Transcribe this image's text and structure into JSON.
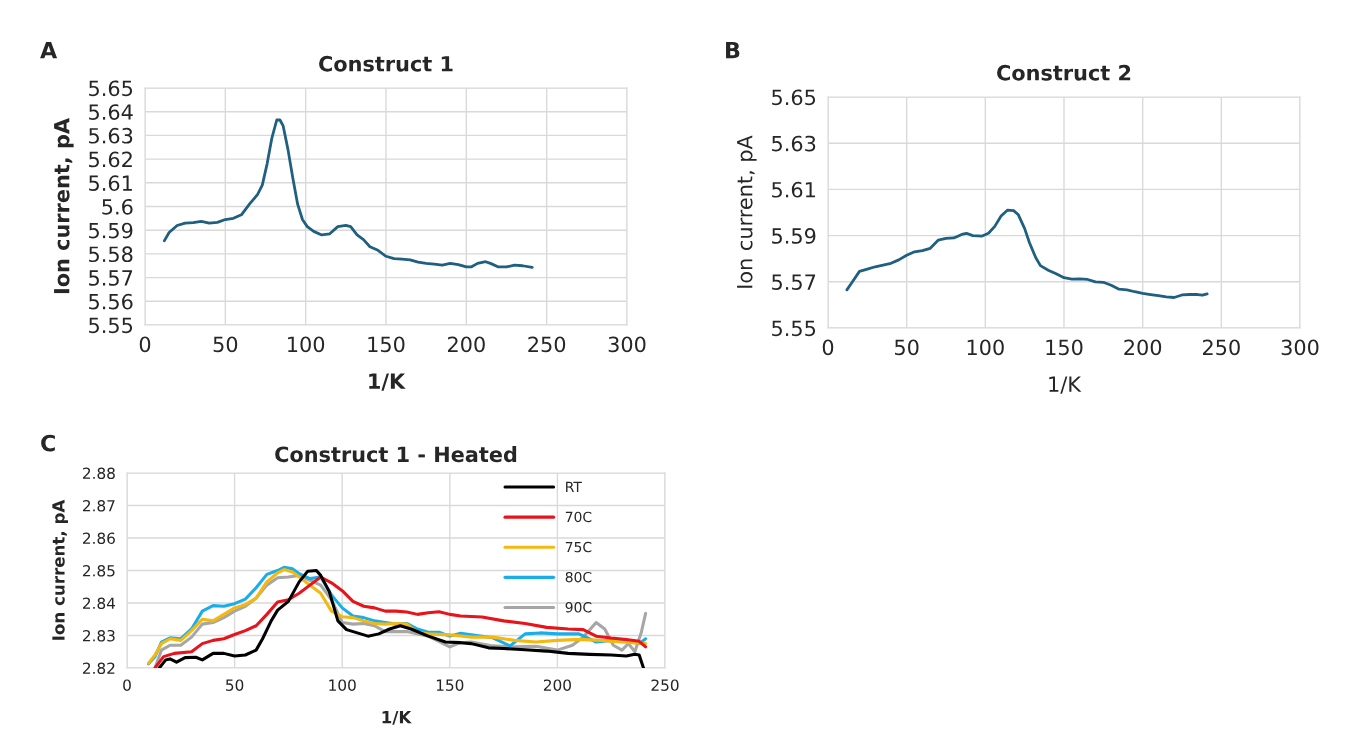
{
  "chart_data": [
    {
      "type": "line",
      "title": "Construct 1",
      "xlabel": "1/K",
      "ylabel": "Ion current, pA",
      "annotations": [
        "A"
      ],
      "xlim": [
        0,
        300
      ],
      "xticks": [
        0,
        50,
        100,
        150,
        200,
        250,
        300
      ],
      "ylim": [
        5.55,
        5.65
      ],
      "yticks": [
        {
          "value": 5.55,
          "label": "5.55"
        },
        {
          "value": 5.56,
          "label": "5.56"
        },
        {
          "value": 5.57,
          "label": "5.57"
        },
        {
          "value": 5.58,
          "label": "5.58"
        },
        {
          "value": 5.59,
          "label": "5.59"
        },
        {
          "value": 5.6,
          "label": "5.6"
        },
        {
          "value": 5.61,
          "label": "5.61"
        },
        {
          "value": 5.62,
          "label": "5.62"
        },
        {
          "value": 5.63,
          "label": "5.63"
        },
        {
          "value": 5.64,
          "label": "5.64"
        },
        {
          "value": 5.65,
          "label": "5.65"
        }
      ],
      "grid": true,
      "legend": false,
      "series": [
        {
          "color": "#1f5f7f",
          "x": [
            12,
            15,
            20,
            25,
            30,
            35,
            40,
            45,
            50,
            55,
            60,
            65,
            70,
            73,
            76,
            79,
            82,
            84,
            86,
            89,
            92,
            95,
            98,
            101,
            105,
            110,
            115,
            120,
            125,
            128,
            132,
            136,
            140,
            145,
            150,
            155,
            160,
            165,
            170,
            175,
            180,
            185,
            190,
            195,
            200,
            203,
            207,
            212,
            215,
            220,
            225,
            230,
            235,
            241
          ],
          "values": [
            5.5855,
            5.589,
            5.592,
            5.593,
            5.5932,
            5.5937,
            5.593,
            5.5933,
            5.5945,
            5.595,
            5.5965,
            5.601,
            5.605,
            5.609,
            5.618,
            5.629,
            5.6365,
            5.6365,
            5.634,
            5.624,
            5.612,
            5.601,
            5.5945,
            5.5915,
            5.5895,
            5.588,
            5.5885,
            5.5915,
            5.592,
            5.5915,
            5.588,
            5.586,
            5.583,
            5.5815,
            5.579,
            5.578,
            5.5778,
            5.5775,
            5.5765,
            5.576,
            5.5757,
            5.5753,
            5.576,
            5.5755,
            5.5745,
            5.5745,
            5.576,
            5.5767,
            5.576,
            5.5745,
            5.5745,
            5.5753,
            5.575,
            5.5743
          ]
        }
      ]
    },
    {
      "type": "line",
      "title": "Construct 2",
      "xlabel": "1/K",
      "ylabel": "Ion current, pA",
      "annotations": [
        "B"
      ],
      "xlim": [
        0,
        300
      ],
      "xticks": [
        0,
        50,
        100,
        150,
        200,
        250,
        300
      ],
      "ylim": [
        5.55,
        5.65
      ],
      "yticks": [
        {
          "value": 5.55,
          "label": "5.55"
        },
        {
          "value": 5.57,
          "label": "5.57"
        },
        {
          "value": 5.59,
          "label": "5.59"
        },
        {
          "value": 5.61,
          "label": "5.61"
        },
        {
          "value": 5.63,
          "label": "5.63"
        },
        {
          "value": 5.65,
          "label": "5.65"
        }
      ],
      "grid": true,
      "legend": false,
      "series": [
        {
          "color": "#1f5f7f",
          "x": [
            12,
            15,
            20,
            25,
            30,
            40,
            45,
            50,
            55,
            60,
            65,
            70,
            75,
            80,
            85,
            88,
            92,
            98,
            102,
            106,
            110,
            114,
            118,
            121,
            125,
            128,
            132,
            135,
            140,
            145,
            150,
            155,
            160,
            165,
            170,
            175,
            180,
            185,
            190,
            195,
            200,
            205,
            210,
            215,
            220,
            225,
            230,
            235,
            238,
            241
          ],
          "values": [
            5.5665,
            5.5695,
            5.5745,
            5.5755,
            5.5765,
            5.578,
            5.5795,
            5.5815,
            5.583,
            5.5835,
            5.5845,
            5.588,
            5.5888,
            5.589,
            5.5905,
            5.591,
            5.59,
            5.5898,
            5.591,
            5.594,
            5.5985,
            5.601,
            5.6008,
            5.599,
            5.593,
            5.587,
            5.5805,
            5.577,
            5.575,
            5.5735,
            5.5718,
            5.5712,
            5.5713,
            5.571,
            5.57,
            5.5698,
            5.5685,
            5.5668,
            5.5665,
            5.5657,
            5.565,
            5.5645,
            5.564,
            5.5635,
            5.5632,
            5.5643,
            5.5645,
            5.5645,
            5.5642,
            5.5648
          ]
        }
      ]
    },
    {
      "type": "line",
      "title": "Construct 1 - Heated",
      "xlabel": "1/K",
      "ylabel": "Ion current, pA",
      "annotations": [
        "C"
      ],
      "xlim": [
        0,
        250
      ],
      "xticks": [
        0,
        50,
        100,
        150,
        200,
        250
      ],
      "ylim": [
        2.82,
        2.88
      ],
      "yticks": [
        {
          "value": 2.82,
          "label": "2.82"
        },
        {
          "value": 2.83,
          "label": "2.83"
        },
        {
          "value": 2.84,
          "label": "2.84"
        },
        {
          "value": 2.85,
          "label": "2.85"
        },
        {
          "value": 2.86,
          "label": "2.86"
        },
        {
          "value": 2.87,
          "label": "2.87"
        },
        {
          "value": 2.88,
          "label": "2.88"
        }
      ],
      "grid": true,
      "legend": "top right",
      "series": [
        {
          "name": "RT",
          "color": "#000000",
          "x": [
            15,
            18,
            20,
            23,
            27,
            32,
            35,
            40,
            45,
            50,
            55,
            60,
            63,
            67,
            70,
            75,
            80,
            84,
            88,
            90,
            94,
            98,
            102,
            107,
            112,
            117,
            122,
            127,
            132,
            140,
            148,
            155,
            160,
            168,
            175,
            185,
            195,
            205,
            215,
            225,
            232,
            236,
            238,
            240
          ],
          "values": [
            2.82,
            2.8225,
            2.8228,
            2.8218,
            2.8232,
            2.8233,
            2.8225,
            2.8245,
            2.8245,
            2.8237,
            2.824,
            2.8255,
            2.829,
            2.8345,
            2.8378,
            2.8405,
            2.8465,
            2.8498,
            2.85,
            2.8485,
            2.8435,
            2.8345,
            2.8318,
            2.8308,
            2.8298,
            2.8305,
            2.832,
            2.833,
            2.832,
            2.8298,
            2.828,
            2.8278,
            2.8275,
            2.8262,
            2.826,
            2.8256,
            2.8252,
            2.8245,
            2.8242,
            2.824,
            2.8237,
            2.8242,
            2.824,
            2.82
          ]
        },
        {
          "name": "70C",
          "color": "#e8141c",
          "x": [
            13,
            17,
            22,
            30,
            35,
            40,
            45,
            50,
            55,
            60,
            65,
            70,
            75,
            80,
            85,
            90,
            95,
            100,
            105,
            110,
            115,
            120,
            125,
            130,
            135,
            140,
            145,
            150,
            155,
            165,
            175,
            185,
            195,
            205,
            212,
            218,
            225,
            232,
            238,
            241
          ],
          "values": [
            2.82,
            2.8235,
            2.8245,
            2.825,
            2.8275,
            2.8285,
            2.829,
            2.8303,
            2.8315,
            2.833,
            2.8365,
            2.8403,
            2.841,
            2.843,
            2.8455,
            2.848,
            2.8462,
            2.8438,
            2.8405,
            2.839,
            2.8385,
            2.8375,
            2.8375,
            2.8372,
            2.8365,
            2.837,
            2.8373,
            2.8365,
            2.836,
            2.8357,
            2.8345,
            2.8337,
            2.8325,
            2.832,
            2.8318,
            2.8298,
            2.8292,
            2.8288,
            2.8282,
            2.8265
          ]
        },
        {
          "name": "75C",
          "color": "#f5b80f",
          "x": [
            10,
            13,
            16,
            20,
            25,
            30,
            35,
            40,
            45,
            50,
            55,
            60,
            65,
            70,
            73,
            77,
            80,
            85,
            90,
            95,
            100,
            105,
            110,
            115,
            120,
            125,
            130,
            135,
            140,
            150,
            160,
            170,
            180,
            190,
            200,
            210,
            220,
            230,
            241
          ],
          "values": [
            2.8215,
            2.824,
            2.8275,
            2.829,
            2.8285,
            2.8315,
            2.835,
            2.8345,
            2.8365,
            2.8385,
            2.8395,
            2.8415,
            2.8465,
            2.8493,
            2.8503,
            2.8495,
            2.848,
            2.8455,
            2.843,
            2.8375,
            2.8358,
            2.8355,
            2.8345,
            2.8337,
            2.8335,
            2.8337,
            2.8335,
            2.831,
            2.8305,
            2.8302,
            2.8295,
            2.8295,
            2.8285,
            2.828,
            2.8285,
            2.8288,
            2.8285,
            2.828,
            2.8275
          ]
        },
        {
          "name": "80C",
          "color": "#1aaee8",
          "x": [
            10,
            13,
            16,
            20,
            25,
            30,
            35,
            40,
            45,
            50,
            55,
            60,
            65,
            70,
            73,
            77,
            80,
            85,
            90,
            95,
            100,
            105,
            110,
            115,
            120,
            125,
            130,
            135,
            140,
            145,
            150,
            155,
            160,
            170,
            178,
            185,
            192,
            200,
            210,
            218,
            225,
            232,
            238,
            241
          ],
          "values": [
            2.8213,
            2.8235,
            2.828,
            2.8293,
            2.829,
            2.832,
            2.8375,
            2.8392,
            2.839,
            2.8398,
            2.8412,
            2.8447,
            2.8488,
            2.85,
            2.851,
            2.8505,
            2.849,
            2.8475,
            2.848,
            2.8425,
            2.8385,
            2.836,
            2.8355,
            2.8345,
            2.834,
            2.8335,
            2.8337,
            2.832,
            2.831,
            2.831,
            2.8298,
            2.8307,
            2.8302,
            2.8293,
            2.8268,
            2.8305,
            2.8308,
            2.8305,
            2.8305,
            2.828,
            2.8285,
            2.8285,
            2.8275,
            2.829
          ]
        },
        {
          "name": "90C",
          "color": "#a6a6a6",
          "x": [
            13,
            16,
            20,
            25,
            30,
            35,
            40,
            45,
            50,
            55,
            60,
            65,
            70,
            75,
            80,
            85,
            90,
            95,
            100,
            105,
            110,
            115,
            120,
            130,
            140,
            150,
            155,
            160,
            170,
            180,
            190,
            200,
            207,
            212,
            218,
            222,
            226,
            230,
            233,
            236,
            239,
            241
          ],
          "values": [
            2.82,
            2.8255,
            2.827,
            2.827,
            2.8295,
            2.8335,
            2.834,
            2.8355,
            2.8375,
            2.839,
            2.8415,
            2.8455,
            2.8478,
            2.848,
            2.8485,
            2.847,
            2.8455,
            2.841,
            2.834,
            2.8335,
            2.8337,
            2.833,
            2.8312,
            2.8312,
            2.8298,
            2.8265,
            2.8278,
            2.828,
            2.8268,
            2.8265,
            2.8267,
            2.8255,
            2.827,
            2.8295,
            2.834,
            2.832,
            2.827,
            2.8255,
            2.8275,
            2.825,
            2.831,
            2.8368
          ]
        }
      ]
    }
  ]
}
